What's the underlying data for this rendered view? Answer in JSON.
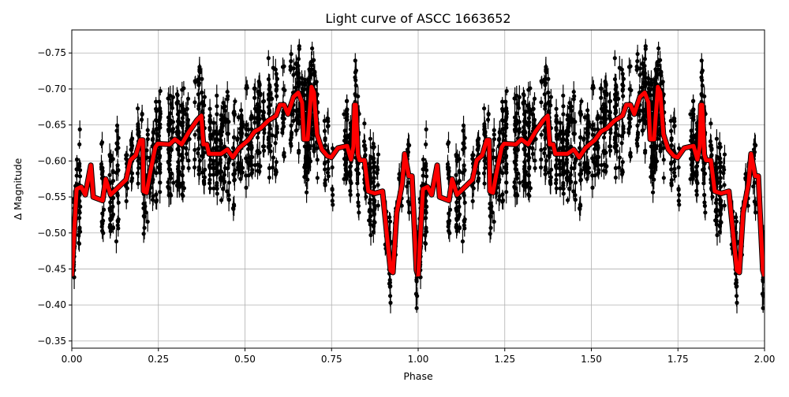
{
  "chart_data": {
    "type": "scatter",
    "title": "Light curve of ASCC 1663652",
    "xlabel": "Phase",
    "ylabel": "Δ Magnitude",
    "xlim": [
      0,
      2
    ],
    "ylim": [
      -0.34,
      -0.782
    ],
    "y_inverted": true,
    "grid": true,
    "xticks": [
      "0.00",
      "0.25",
      "0.50",
      "0.75",
      "1.00",
      "1.25",
      "1.50",
      "1.75",
      "2.00"
    ],
    "yticks": [
      "-0.75",
      "-0.70",
      "-0.65",
      "-0.60",
      "-0.55",
      "-0.50",
      "-0.45",
      "-0.40",
      "-0.35"
    ],
    "colors": {
      "points": "#000000",
      "model": "#ff0000",
      "grid": "#b0b0b0"
    },
    "model_repeats_every_phase": 1,
    "model": {
      "phase": [
        0,
        0.014,
        0.027,
        0.039,
        0.055,
        0.062,
        0.089,
        0.098,
        0.112,
        0.146,
        0.157,
        0.169,
        0.185,
        0.198,
        0.205,
        0.207,
        0.216,
        0.226,
        0.241,
        0.248,
        0.282,
        0.298,
        0.317,
        0.339,
        0.362,
        0.374,
        0.38,
        0.39,
        0.396,
        0.431,
        0.449,
        0.465,
        0.483,
        0.51,
        0.528,
        0.544,
        0.567,
        0.59,
        0.601,
        0.613,
        0.624,
        0.64,
        0.654,
        0.665,
        0.67,
        0.681,
        0.692,
        0.699,
        0.708,
        0.722,
        0.738,
        0.749,
        0.768,
        0.795,
        0.806,
        0.813,
        0.816,
        0.82,
        0.826,
        0.831,
        0.845,
        0.856,
        0.875,
        0.897,
        0.92,
        0.927,
        0.938,
        0.954,
        0.961,
        0.973,
        0.982,
        0.995,
        1.0
      ],
      "magnitude": [
        -0.44,
        -0.561,
        -0.564,
        -0.553,
        -0.594,
        -0.55,
        -0.545,
        -0.575,
        -0.553,
        -0.569,
        -0.574,
        -0.601,
        -0.608,
        -0.629,
        -0.629,
        -0.558,
        -0.556,
        -0.583,
        -0.619,
        -0.624,
        -0.623,
        -0.63,
        -0.623,
        -0.641,
        -0.657,
        -0.663,
        -0.623,
        -0.623,
        -0.61,
        -0.61,
        -0.616,
        -0.605,
        -0.618,
        -0.629,
        -0.641,
        -0.645,
        -0.656,
        -0.663,
        -0.678,
        -0.678,
        -0.665,
        -0.689,
        -0.695,
        -0.681,
        -0.63,
        -0.63,
        -0.703,
        -0.695,
        -0.637,
        -0.616,
        -0.607,
        -0.605,
        -0.618,
        -0.621,
        -0.602,
        -0.62,
        -0.678,
        -0.678,
        -0.609,
        -0.601,
        -0.601,
        -0.558,
        -0.555,
        -0.558,
        -0.448,
        -0.445,
        -0.528,
        -0.569,
        -0.61,
        -0.579,
        -0.579,
        -0.448,
        -0.44
      ]
    }
  }
}
